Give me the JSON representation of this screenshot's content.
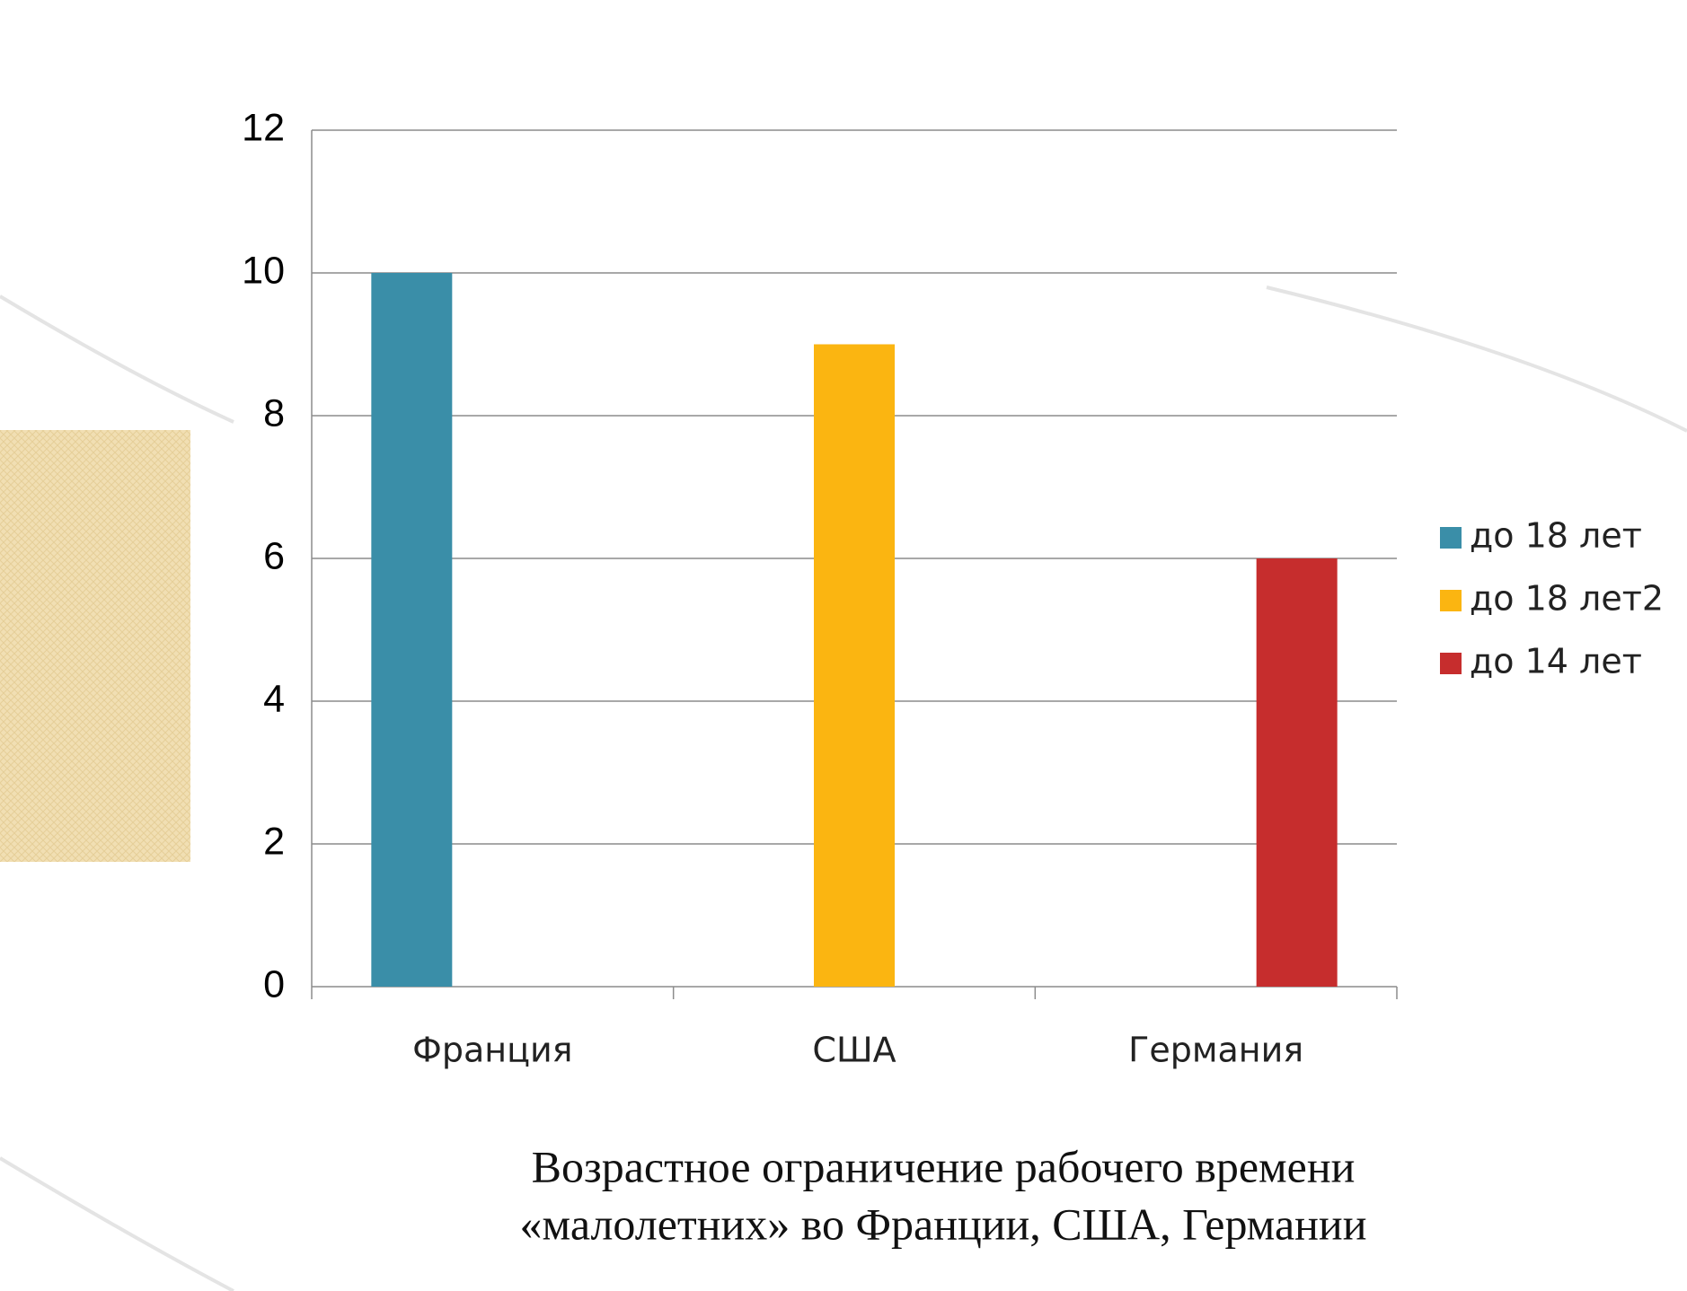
{
  "chart_data": {
    "type": "bar",
    "title": [
      "Возрастное ограничение рабочего времени",
      "«малолетних» во Франции, США, Германии"
    ],
    "categories": [
      "Франция",
      "США",
      "Германия"
    ],
    "series": [
      {
        "name": "до 18 лет",
        "color": "#3a8ea8",
        "values": [
          10,
          null,
          null
        ]
      },
      {
        "name": "до 18 лет2",
        "color": "#fbb511",
        "values": [
          null,
          9,
          null
        ]
      },
      {
        "name": "до 14 лет",
        "color": "#c62d2d",
        "values": [
          null,
          null,
          6
        ]
      }
    ],
    "ylim": [
      0,
      12
    ],
    "yticks": [
      0,
      2,
      4,
      6,
      8,
      10,
      12
    ],
    "grid": true,
    "legend": "right"
  }
}
